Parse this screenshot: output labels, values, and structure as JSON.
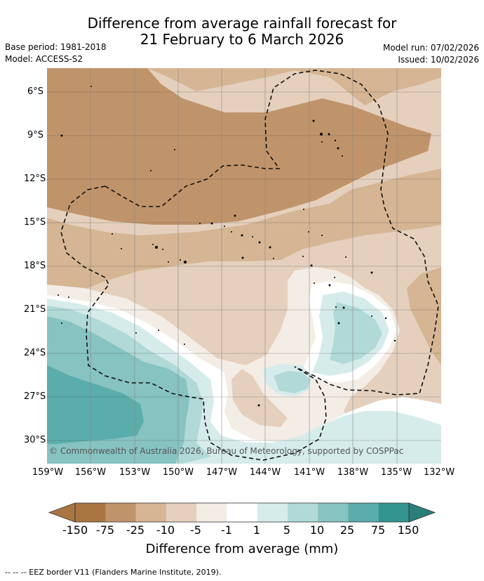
{
  "title": {
    "line1": "Difference from average rainfall forecast for",
    "line2": "21 February to 6 March 2026"
  },
  "meta_left": {
    "base_period": "Base period: 1981-2018",
    "model": "Model: ACCESS-S2"
  },
  "meta_right": {
    "model_run": "Model run: 07/02/2026",
    "issued": "Issued: 10/02/2026"
  },
  "lat_labels": [
    "6°S",
    "9°S",
    "12°S",
    "15°S",
    "18°S",
    "21°S",
    "24°S",
    "27°S",
    "30°S"
  ],
  "lon_labels": [
    "159°W",
    "156°W",
    "153°W",
    "150°W",
    "147°W",
    "144°W",
    "141°W",
    "138°W",
    "135°W",
    "132°W"
  ],
  "copyright": "© Commonwealth of Australia 2026, Bureau of Meteorology, supported by COSPPac",
  "colorbar": {
    "ticks": [
      "-150",
      "-75",
      "-25",
      "-10",
      "-5",
      "-1",
      "1",
      "5",
      "10",
      "25",
      "75",
      "150"
    ],
    "colors": [
      "#a97540",
      "#c0946a",
      "#d5b593",
      "#e5d0bd",
      "#f3ede6",
      "#ffffff",
      "#d6eceb",
      "#b0d9d7",
      "#86c3c1",
      "#5aadab",
      "#33958f",
      "#2a7f7a"
    ],
    "title": "Difference from average (mm)"
  },
  "footer": "--  --  -- EEZ border V11 (Flanders Marine Institute, 2019).",
  "colors": {
    "brown_dark": "#c0946a",
    "brown_mid": "#d5b593",
    "brown_light": "#e5d0bd",
    "brown_pale": "#f3ede6",
    "teal_pale": "#d6eceb",
    "teal_light": "#b0d9d7",
    "teal_mid": "#86c3c1",
    "teal_dark": "#5aadab"
  }
}
